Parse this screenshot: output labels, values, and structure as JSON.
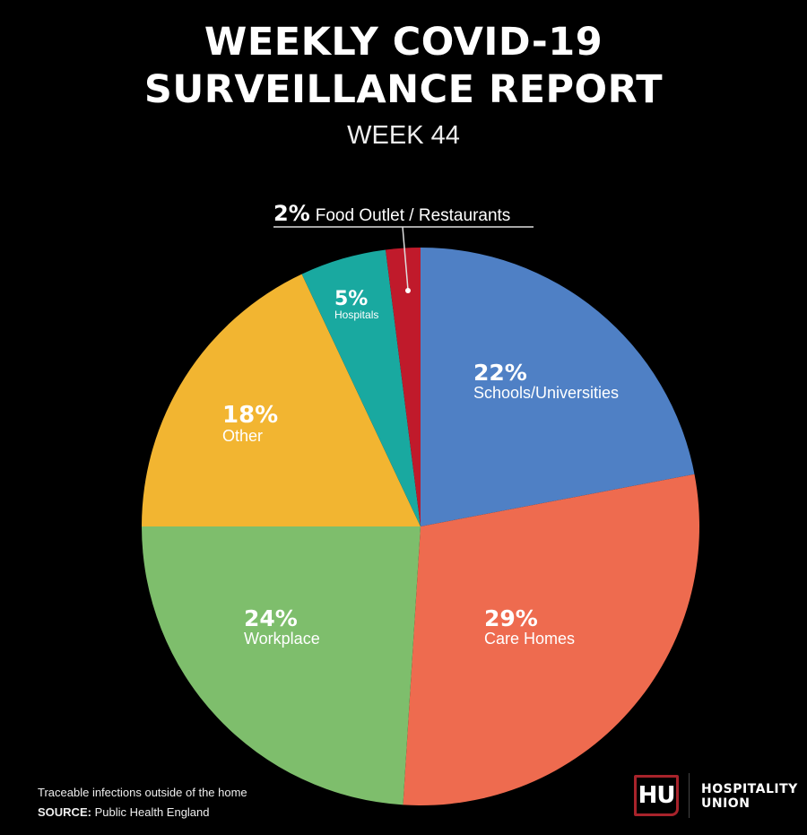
{
  "header": {
    "title_line1": "WEEKLY COVID-19",
    "title_line2": "SURVEILLANCE REPORT",
    "subtitle": "WEEK 44"
  },
  "chart_data": {
    "type": "pie",
    "title": "WEEKLY COVID-19 SURVEILLANCE REPORT",
    "subtitle": "WEEK 44",
    "start": "12 o'clock",
    "direction": "clockwise",
    "slices": [
      {
        "label": "Schools/Universities",
        "value": 22,
        "pct_label": "22%",
        "color": "#4f80c5"
      },
      {
        "label": "Care Homes",
        "value": 29,
        "pct_label": "29%",
        "color": "#ee6b4f"
      },
      {
        "label": "Workplace",
        "value": 24,
        "pct_label": "24%",
        "color": "#7ebe6c"
      },
      {
        "label": "Other",
        "value": 18,
        "pct_label": "18%",
        "color": "#f2b531"
      },
      {
        "label": "Hospitals",
        "value": 5,
        "pct_label": "5%",
        "color": "#19a9a0"
      },
      {
        "label": "Food Outlet / Restaurants",
        "value": 2,
        "pct_label": "2%",
        "color": "#c01a2b"
      }
    ]
  },
  "footer": {
    "note": "Traceable infections outside of the home",
    "source_label": "SOURCE:",
    "source": "Public Health England"
  },
  "brand": {
    "logo": "HU",
    "name_line1": "HOSPITALITY",
    "name_line2": "UNION",
    "logo_color": "#a8232b"
  }
}
